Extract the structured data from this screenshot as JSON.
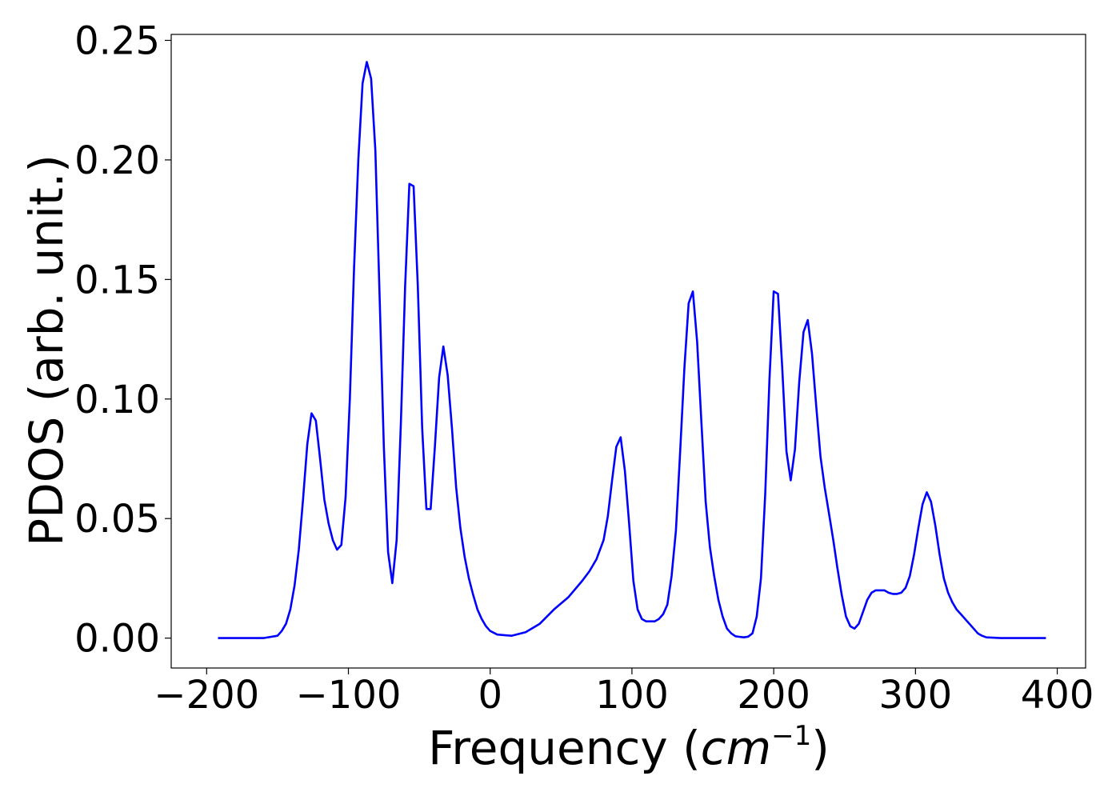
{
  "chart_data": {
    "type": "line",
    "title": "",
    "xlabel": "Frequency (",
    "xlabel_unit": "cm",
    "xlabel_exp": "−1",
    "xlabel_close": ")",
    "ylabel": "PDOS (arb. unit.)",
    "xlim": [
      -225,
      420
    ],
    "ylim": [
      -0.0125,
      0.2525
    ],
    "x_ticks": [
      -200,
      -100,
      0,
      100,
      200,
      300,
      400
    ],
    "x_tick_labels": [
      "−200",
      "−100",
      "0",
      "100",
      "200",
      "300",
      "400"
    ],
    "y_ticks": [
      0.0,
      0.05,
      0.1,
      0.15,
      0.2,
      0.25
    ],
    "y_tick_labels": [
      "0.00",
      "0.05",
      "0.10",
      "0.15",
      "0.20",
      "0.25"
    ],
    "grid": false,
    "series": [
      {
        "color": "#0000ff",
        "x": [
          -192,
          -160,
          -150,
          -147,
          -144,
          -141,
          -138,
          -135,
          -132,
          -129,
          -126,
          -123,
          -120,
          -117,
          -114,
          -111,
          -108,
          -105,
          -102,
          -99,
          -96,
          -93,
          -90,
          -87,
          -84,
          -81,
          -78,
          -75,
          -72,
          -69,
          -66,
          -63,
          -60,
          -57,
          -54,
          -51,
          -48,
          -45,
          -42,
          -39,
          -36,
          -33,
          -30,
          -27,
          -24,
          -21,
          -18,
          -15,
          -12,
          -9,
          -6,
          -3,
          0,
          5,
          15,
          25,
          35,
          45,
          55,
          65,
          70,
          75,
          80,
          83,
          86,
          89,
          92,
          95,
          98,
          101,
          104,
          107,
          110,
          113,
          116,
          119,
          122,
          125,
          128,
          131,
          134,
          137,
          140,
          143,
          146,
          149,
          152,
          155,
          158,
          161,
          164,
          167,
          170,
          173,
          176,
          179,
          182,
          185,
          188,
          191,
          194,
          197,
          200,
          203,
          206,
          209,
          212,
          215,
          218,
          221,
          224,
          227,
          230,
          233,
          236,
          239,
          242,
          245,
          248,
          251,
          254,
          257,
          260,
          263,
          266,
          269,
          272,
          275,
          278,
          281,
          284,
          287,
          290,
          293,
          296,
          299,
          302,
          305,
          308,
          311,
          314,
          317,
          320,
          323,
          326,
          329,
          332,
          335,
          338,
          341,
          344,
          347,
          350,
          360,
          392
        ],
        "y": [
          0.0,
          0.0,
          0.001,
          0.003,
          0.006,
          0.012,
          0.022,
          0.037,
          0.058,
          0.081,
          0.094,
          0.091,
          0.075,
          0.058,
          0.048,
          0.041,
          0.037,
          0.039,
          0.059,
          0.1,
          0.155,
          0.2,
          0.232,
          0.241,
          0.234,
          0.204,
          0.143,
          0.08,
          0.036,
          0.023,
          0.041,
          0.09,
          0.147,
          0.19,
          0.189,
          0.147,
          0.088,
          0.054,
          0.054,
          0.08,
          0.109,
          0.122,
          0.11,
          0.088,
          0.063,
          0.046,
          0.034,
          0.025,
          0.018,
          0.012,
          0.008,
          0.005,
          0.003,
          0.0015,
          0.001,
          0.0025,
          0.006,
          0.012,
          0.017,
          0.024,
          0.028,
          0.033,
          0.041,
          0.051,
          0.066,
          0.08,
          0.084,
          0.07,
          0.048,
          0.024,
          0.012,
          0.008,
          0.007,
          0.007,
          0.007,
          0.008,
          0.01,
          0.014,
          0.026,
          0.045,
          0.078,
          0.113,
          0.14,
          0.145,
          0.124,
          0.09,
          0.057,
          0.038,
          0.026,
          0.016,
          0.009,
          0.004,
          0.002,
          0.0008,
          0.0005,
          0.0003,
          0.0006,
          0.002,
          0.009,
          0.025,
          0.06,
          0.108,
          0.145,
          0.144,
          0.113,
          0.078,
          0.066,
          0.079,
          0.107,
          0.128,
          0.133,
          0.119,
          0.097,
          0.076,
          0.063,
          0.052,
          0.041,
          0.029,
          0.018,
          0.009,
          0.005,
          0.004,
          0.006,
          0.011,
          0.016,
          0.019,
          0.02,
          0.02,
          0.02,
          0.019,
          0.0185,
          0.0185,
          0.019,
          0.021,
          0.026,
          0.035,
          0.046,
          0.056,
          0.061,
          0.057,
          0.047,
          0.035,
          0.025,
          0.019,
          0.015,
          0.012,
          0.01,
          0.008,
          0.006,
          0.004,
          0.002,
          0.001,
          0.0003,
          0.0,
          0.0
        ]
      }
    ]
  }
}
